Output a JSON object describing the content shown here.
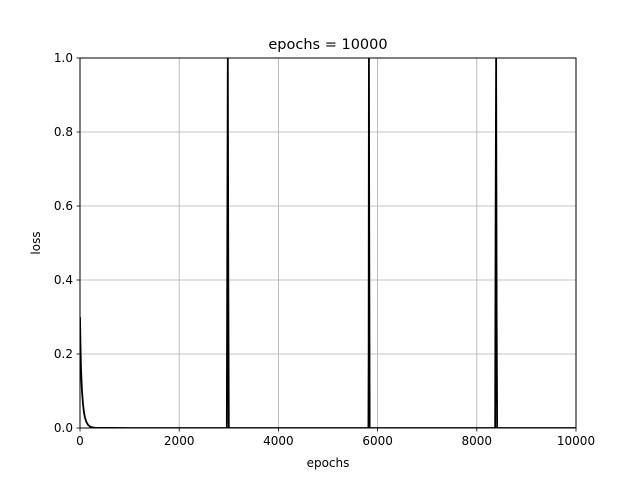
{
  "chart_data": {
    "type": "line",
    "title": "epochs = 10000",
    "xlabel": "epochs",
    "ylabel": "loss",
    "xlim": [
      0,
      10000
    ],
    "ylim": [
      0,
      1.0
    ],
    "xticks": [
      0,
      2000,
      4000,
      6000,
      8000,
      10000
    ],
    "xtick_labels": [
      "0",
      "2000",
      "4000",
      "6000",
      "8000",
      "10000"
    ],
    "yticks": [
      0.0,
      0.2,
      0.4,
      0.6,
      0.8,
      1.0
    ],
    "ytick_labels": [
      "0.0",
      "0.2",
      "0.4",
      "0.6",
      "0.8",
      "1.0"
    ],
    "grid": true,
    "series": [
      {
        "color": "#000000",
        "x": [
          0,
          10,
          20,
          40,
          60,
          80,
          100,
          130,
          160,
          200,
          250,
          300,
          400,
          600,
          1000,
          2000,
          2950,
          2960,
          2970,
          2980,
          2990,
          3000,
          4000,
          5000,
          5800,
          5815,
          5820,
          5825,
          5830,
          5840,
          5850,
          6500,
          7500,
          8350,
          8370,
          8380,
          8390,
          8400,
          8410,
          9000,
          10000
        ],
        "y": [
          0.3,
          0.22,
          0.16,
          0.1,
          0.065,
          0.042,
          0.028,
          0.016,
          0.009,
          0.004,
          0.0015,
          0.0006,
          0.0002,
          0.0001,
          0.0,
          0.0,
          0.0,
          0.0,
          0.5,
          1.0,
          0.4,
          0.0,
          0.0,
          0.0,
          0.0,
          0.0,
          0.2,
          1.0,
          0.6,
          0.0,
          0.0,
          0.0,
          0.0,
          0.0,
          0.0,
          0.6,
          1.0,
          0.3,
          0.0,
          0.0,
          0.0
        ]
      }
    ]
  }
}
